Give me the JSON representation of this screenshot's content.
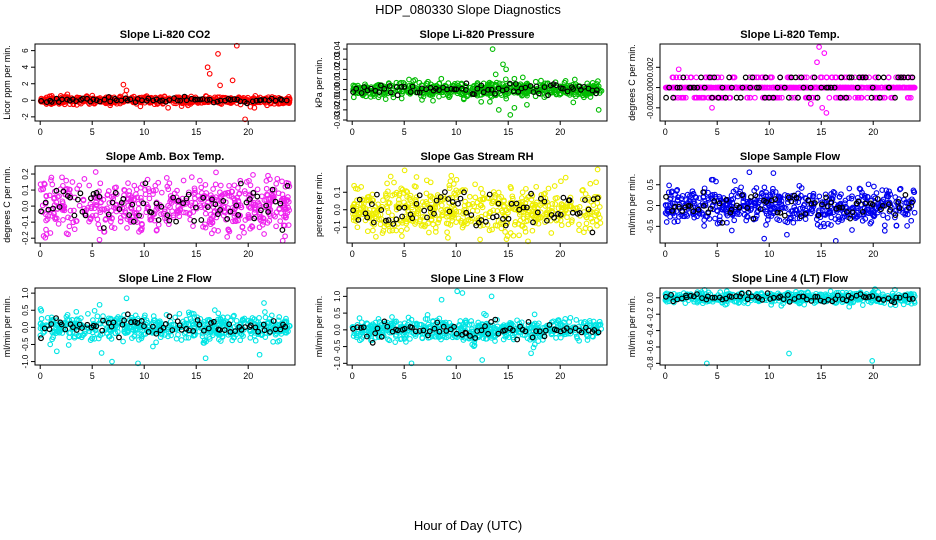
{
  "figure": {
    "title": "HDP_080330  Slope Diagnostics",
    "xlabel": "Hour of Day (UTC)",
    "overlay_color": "#000000"
  },
  "chart_data": [
    {
      "type": "scatter",
      "title": "Slope Li-820 CO2",
      "ylabel": "Licor ppm per min.",
      "color": "#ff0000",
      "xlim": [
        -0.5,
        24.5
      ],
      "ylim": [
        -2.5,
        6.8
      ],
      "xticks": [
        0,
        5,
        10,
        15,
        20
      ],
      "yticks": [
        -2,
        0,
        2,
        4,
        6
      ],
      "ytick_labels": [
        "-2",
        "0",
        "2",
        "4",
        "6"
      ],
      "spread": 0.22,
      "outliers": [
        [
          8.0,
          1.9
        ],
        [
          8.3,
          1.2
        ],
        [
          12.3,
          -0.9
        ],
        [
          16.1,
          4.0
        ],
        [
          16.3,
          3.2
        ],
        [
          17.1,
          5.6
        ],
        [
          17.3,
          1.8
        ],
        [
          18.5,
          2.4
        ],
        [
          18.9,
          6.6
        ],
        [
          19.7,
          -2.3
        ],
        [
          20.6,
          -0.9
        ],
        [
          13.6,
          -0.7
        ]
      ]
    },
    {
      "type": "scatter",
      "title": "Slope Li-820 Pressure",
      "ylabel": "kPa per min.",
      "color": "#00bb00",
      "xlim": [
        -0.5,
        24.5
      ],
      "ylim": [
        -0.031,
        0.045
      ],
      "xticks": [
        0,
        5,
        10,
        15,
        20
      ],
      "yticks": [
        -0.03,
        -0.02,
        -0.01,
        0.0,
        0.01,
        0.02,
        0.03,
        0.04
      ],
      "ytick_labels": [
        "-0.03",
        "-0.02",
        "-0.01",
        "0.00",
        "0.01",
        "0.02",
        "0.03",
        "0.04"
      ],
      "spread": 0.004,
      "outliers": [
        [
          13.5,
          0.04
        ],
        [
          14.5,
          0.025
        ],
        [
          14.8,
          0.02
        ],
        [
          15.2,
          -0.025
        ],
        [
          14.1,
          -0.02
        ],
        [
          13.8,
          0.015
        ],
        [
          15.6,
          -0.018
        ],
        [
          16.4,
          0.012
        ],
        [
          21.4,
          0.01
        ],
        [
          23.7,
          -0.02
        ],
        [
          12.4,
          -0.012
        ],
        [
          16.8,
          -0.015
        ]
      ]
    },
    {
      "type": "scatter",
      "title": "Slope Li-820 Temp.",
      "ylabel": "degrees C per min.",
      "color": "#ff00ff",
      "xlim": [
        -0.5,
        24.5
      ],
      "ylim": [
        -0.0033,
        0.0043
      ],
      "xticks": [
        0,
        5,
        10,
        15,
        20
      ],
      "yticks": [
        -0.002,
        0.0,
        0.002
      ],
      "ytick_labels": [
        "-0.002",
        "0.000",
        "0.002"
      ],
      "quantized": [
        -0.001,
        0.0,
        0.001
      ],
      "spread": 0.0,
      "outliers": [
        [
          14.8,
          0.004
        ],
        [
          15.1,
          -0.002
        ],
        [
          14.6,
          0.0025
        ],
        [
          15.5,
          -0.0025
        ],
        [
          4.5,
          -0.002
        ],
        [
          1.3,
          0.0018
        ],
        [
          14.0,
          -0.0016
        ],
        [
          15.3,
          0.0034
        ]
      ]
    },
    {
      "type": "scatter",
      "title": "Slope Amb. Box Temp.",
      "ylabel": "degrees C per min.",
      "color": "#ee22ee",
      "xlim": [
        -0.5,
        24.5
      ],
      "ylim": [
        -0.23,
        0.25
      ],
      "xticks": [
        0,
        5,
        10,
        15,
        20
      ],
      "yticks": [
        -0.2,
        -0.1,
        0.0,
        0.1,
        0.2
      ],
      "ytick_labels": [
        "-0.2",
        "-0.1",
        "0.0",
        "0.1",
        "0.2"
      ],
      "spread": 0.08,
      "outliers": [
        [
          5.7,
          -0.21
        ],
        [
          16.9,
          0.21
        ],
        [
          16.5,
          -0.17
        ],
        [
          3.1,
          0.15
        ],
        [
          22.8,
          0.17
        ],
        [
          9.5,
          -0.16
        ]
      ]
    },
    {
      "type": "scatter",
      "title": "Slope Gas Stream RH",
      "ylabel": "percent per min.",
      "color": "#eeee00",
      "xlim": [
        -0.5,
        24.5
      ],
      "ylim": [
        -0.19,
        0.25
      ],
      "xticks": [
        0,
        5,
        10,
        15,
        20
      ],
      "yticks": [
        -0.1,
        0.0,
        0.1
      ],
      "ytick_labels": [
        "-0.1",
        "0.0",
        "0.1"
      ],
      "spread": 0.07,
      "outliers": [
        [
          23.6,
          0.23
        ],
        [
          16.9,
          -0.18
        ],
        [
          9.2,
          -0.16
        ],
        [
          3.7,
          0.19
        ],
        [
          12.3,
          -0.17
        ]
      ]
    },
    {
      "type": "scatter",
      "title": "Slope Sample Flow",
      "ylabel": "ml/min per min.",
      "color": "#0000ee",
      "xlim": [
        -0.5,
        24.5
      ],
      "ylim": [
        -0.9,
        0.95
      ],
      "xticks": [
        0,
        5,
        10,
        15,
        20
      ],
      "yticks": [
        -0.5,
        0.0,
        0.5
      ],
      "ytick_labels": [
        "-0.5",
        "0.0",
        "0.5"
      ],
      "spread": 0.22,
      "outliers": [
        [
          8.1,
          0.8
        ],
        [
          10.4,
          0.78
        ],
        [
          16.4,
          -0.85
        ],
        [
          6.4,
          -0.6
        ],
        [
          11.7,
          -0.7
        ],
        [
          4.6,
          0.62
        ]
      ]
    },
    {
      "type": "scatter",
      "title": "Slope Line 2 Flow",
      "ylabel": "ml/min per min.",
      "color": "#00e5e5",
      "xlim": [
        -0.5,
        24.5
      ],
      "ylim": [
        -1.1,
        1.15
      ],
      "xticks": [
        0,
        5,
        10,
        15,
        20
      ],
      "yticks": [
        -1.0,
        -0.5,
        0.0,
        0.5,
        1.0
      ],
      "ytick_labels": [
        "-1.0",
        "-0.5",
        "0.0",
        "0.5",
        "1.0"
      ],
      "spread": 0.18,
      "outliers": [
        [
          6.9,
          -1.0
        ],
        [
          9.4,
          -1.05
        ],
        [
          8.3,
          0.85
        ],
        [
          15.9,
          -0.9
        ],
        [
          21.1,
          -0.8
        ],
        [
          5.9,
          -0.75
        ],
        [
          1.6,
          -0.7
        ]
      ]
    },
    {
      "type": "scatter",
      "title": "Slope Line 3 Flow",
      "ylabel": "ml/min per min.",
      "color": "#00e5e5",
      "xlim": [
        -0.5,
        24.5
      ],
      "ylim": [
        -1.05,
        1.25
      ],
      "xticks": [
        0,
        5,
        10,
        15,
        20
      ],
      "yticks": [
        -1.0,
        -0.5,
        0.0,
        0.5,
        1.0
      ],
      "ytick_labels": [
        "-1.0",
        "-0.5",
        "0.0",
        "0.5",
        "1.0"
      ],
      "spread": 0.16,
      "outliers": [
        [
          10.1,
          1.15
        ],
        [
          10.6,
          1.1
        ],
        [
          5.7,
          -1.0
        ],
        [
          12.5,
          -0.9
        ],
        [
          13.4,
          1.0
        ],
        [
          9.3,
          -0.85
        ],
        [
          17.2,
          -0.7
        ],
        [
          8.6,
          0.9
        ]
      ]
    },
    {
      "type": "scatter",
      "title": "Slope Line 4 (LT) Flow",
      "ylabel": "ml/min per min.",
      "color": "#00e5e5",
      "xlim": [
        -0.5,
        24.5
      ],
      "ylim": [
        -0.82,
        0.12
      ],
      "xticks": [
        0,
        5,
        10,
        15,
        20
      ],
      "yticks": [
        -0.8,
        -0.6,
        -0.4,
        -0.2,
        0.0
      ],
      "ytick_labels": [
        "-0.8",
        "-0.6",
        "-0.4",
        "-0.2",
        "0.0"
      ],
      "spread": 0.035,
      "outliers": [
        [
          4.0,
          -0.8
        ],
        [
          19.9,
          -0.77
        ],
        [
          11.9,
          -0.68
        ],
        [
          15.9,
          0.08
        ],
        [
          3.1,
          0.07
        ]
      ]
    }
  ]
}
